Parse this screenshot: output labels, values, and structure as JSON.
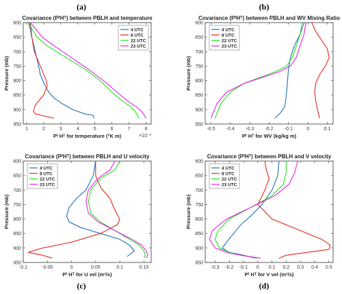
{
  "colors": {
    "4 UTC": "#1f6fb5",
    "8 UTC": "#e3241b",
    "22 UTC": "#22e01c",
    "23 UTC": "#e61ee6"
  },
  "chart_data": [
    {
      "label": "(a)",
      "type": "line",
      "title": "Covariance (PᶠHᵀ) between PBLH and temperature",
      "xlabel": "Pᶠ Hᵀ for temperature (°K m)",
      "xexp": "×10⁻³",
      "ylabel": "Pressure (mb)",
      "xlim": [
        0.8,
        8.3
      ],
      "ylim": [
        600,
        950
      ],
      "xticks": [
        1,
        2,
        3,
        4,
        5,
        6,
        7,
        8
      ],
      "yticks": [
        600,
        650,
        700,
        750,
        800,
        850,
        900,
        950
      ],
      "legend": "top-right",
      "series": [
        {
          "name": "4 UTC",
          "x": [
            1.1,
            1.2,
            1.3,
            1.5,
            1.7,
            1.8,
            1.95,
            2.1,
            2.3,
            2.6,
            3.1,
            3.7,
            4.4,
            4.9,
            4.95
          ],
          "y": [
            600,
            620,
            650,
            700,
            750,
            780,
            800,
            820,
            840,
            860,
            880,
            900,
            915,
            920,
            930
          ]
        },
        {
          "name": "8 UTC",
          "x": [
            1.2,
            1.25,
            1.3,
            1.45,
            1.8,
            2.15,
            2.2,
            2.0,
            1.7,
            1.5,
            1.4,
            1.5,
            2.6
          ],
          "y": [
            600,
            620,
            650,
            700,
            750,
            800,
            820,
            850,
            870,
            885,
            905,
            915,
            930
          ]
        },
        {
          "name": "22 UTC",
          "x": [
            1.1,
            1.3,
            1.6,
            2.2,
            3.3,
            4.4,
            5.3,
            6.0,
            6.6,
            7.1,
            7.4,
            7.6
          ],
          "y": [
            600,
            620,
            650,
            680,
            720,
            760,
            800,
            840,
            870,
            890,
            910,
            930
          ]
        },
        {
          "name": "23 UTC",
          "x": [
            1.2,
            1.5,
            1.9,
            2.6,
            3.6,
            4.6,
            5.5,
            6.3,
            6.9,
            7.4,
            7.8,
            8.0
          ],
          "y": [
            600,
            620,
            650,
            680,
            720,
            760,
            800,
            840,
            870,
            890,
            910,
            930
          ]
        }
      ]
    },
    {
      "label": "(b)",
      "type": "line",
      "title": "Covariance (PᶠHᵀ) between PBLH and WV Mixing Ratio",
      "xlabel": "Pᶠ Hᵀ for WV (kg/kg m)",
      "xexp": "",
      "ylabel": "Pressure (mb)",
      "xlim": [
        -0.53,
        0.13
      ],
      "ylim": [
        600,
        950
      ],
      "xticks": [
        -0.5,
        -0.4,
        -0.3,
        -0.2,
        -0.1,
        0,
        0.1
      ],
      "yticks": [
        600,
        650,
        700,
        750,
        800,
        850,
        900,
        950
      ],
      "legend": "top-left",
      "series": [
        {
          "name": "4 UTC",
          "x": [
            -0.02,
            -0.04,
            -0.07,
            -0.09,
            -0.1,
            -0.105,
            -0.11,
            -0.115,
            -0.12,
            -0.14,
            -0.17
          ],
          "y": [
            600,
            640,
            680,
            720,
            760,
            800,
            840,
            870,
            890,
            910,
            930
          ]
        },
        {
          "name": "8 UTC",
          "x": [
            0.02,
            0.04,
            0.07,
            0.1,
            0.11,
            0.09,
            0.06,
            0.04,
            0.035,
            0.04,
            0.05,
            0.06
          ],
          "y": [
            600,
            630,
            660,
            690,
            720,
            750,
            780,
            810,
            840,
            870,
            900,
            930
          ]
        },
        {
          "name": "22 UTC",
          "x": [
            -0.03,
            -0.04,
            -0.06,
            -0.08,
            -0.11,
            -0.17,
            -0.25,
            -0.33,
            -0.4,
            -0.45,
            -0.48
          ],
          "y": [
            600,
            640,
            680,
            720,
            750,
            770,
            790,
            810,
            840,
            880,
            930
          ]
        },
        {
          "name": "23 UTC",
          "x": [
            -0.01,
            -0.02,
            -0.04,
            -0.06,
            -0.09,
            -0.15,
            -0.24,
            -0.33,
            -0.42,
            -0.47,
            -0.5
          ],
          "y": [
            600,
            640,
            680,
            720,
            750,
            770,
            790,
            810,
            840,
            880,
            930
          ]
        }
      ]
    },
    {
      "label": "(c)",
      "type": "line",
      "title": "Covariance (PᶠHᵀ) between PBLH and U velocity",
      "xlabel": "Pᶠ Hᵀ for U vel (m²/s)",
      "xexp": "",
      "ylabel": "Pressure (mb)",
      "xlim": [
        -0.1,
        0.165
      ],
      "ylim": [
        600,
        950
      ],
      "xticks": [
        -0.1,
        -0.05,
        0,
        0.05,
        0.1,
        0.15
      ],
      "yticks": [
        600,
        650,
        700,
        750,
        800,
        850,
        900,
        950
      ],
      "legend": "top-left",
      "series": [
        {
          "name": "4 UTC",
          "x": [
            0.05,
            0.045,
            0.03,
            0.01,
            -0.005,
            -0.01,
            -0.005,
            0.02,
            0.06,
            0.1,
            0.12,
            0.13,
            0.115
          ],
          "y": [
            600,
            650,
            700,
            730,
            760,
            790,
            810,
            830,
            850,
            870,
            890,
            910,
            930
          ]
        },
        {
          "name": "8 UTC",
          "x": [
            0.05,
            0.05,
            0.06,
            0.08,
            0.09,
            0.1,
            0.095,
            0.06,
            0.0,
            -0.06,
            -0.09,
            -0.06,
            -0.04
          ],
          "y": [
            600,
            650,
            690,
            730,
            770,
            800,
            820,
            850,
            880,
            900,
            915,
            925,
            935
          ]
        },
        {
          "name": "22 UTC",
          "x": [
            0.1,
            0.09,
            0.06,
            0.04,
            0.035,
            0.04,
            0.06,
            0.09,
            0.12,
            0.14,
            0.15,
            0.153,
            0.15
          ],
          "y": [
            600,
            630,
            660,
            700,
            740,
            780,
            810,
            840,
            870,
            890,
            910,
            925,
            935
          ]
        },
        {
          "name": "23 UTC",
          "x": [
            0.09,
            0.08,
            0.055,
            0.035,
            0.03,
            0.035,
            0.055,
            0.09,
            0.125,
            0.145,
            0.155,
            0.158,
            0.155
          ],
          "y": [
            600,
            630,
            660,
            700,
            740,
            780,
            810,
            840,
            870,
            890,
            910,
            925,
            935
          ]
        }
      ]
    },
    {
      "label": "(d)",
      "type": "line",
      "title": "Covariance (PᶠHᵀ) between PBLH and V velocity",
      "xlabel": "Pᶠ Hᵀ for V vel (m²/s)",
      "xexp": "",
      "ylabel": "Pressure (mb)",
      "xlim": [
        -0.37,
        0.53
      ],
      "ylim": [
        600,
        950
      ],
      "xticks": [
        -0.3,
        -0.2,
        -0.1,
        0,
        0.1,
        0.2,
        0.3,
        0.4,
        0.5
      ],
      "yticks": [
        600,
        650,
        700,
        750,
        800,
        850,
        900,
        950
      ],
      "legend": "top-left",
      "series": [
        {
          "name": "4 UTC",
          "x": [
            0.15,
            0.14,
            0.1,
            0.03,
            -0.05,
            -0.12,
            -0.17,
            -0.22,
            -0.25,
            -0.2,
            -0.1,
            -0.02
          ],
          "y": [
            600,
            650,
            700,
            750,
            790,
            820,
            850,
            880,
            900,
            915,
            925,
            935
          ]
        },
        {
          "name": "8 UTC",
          "x": [
            0.05,
            0.06,
            0.08,
            0.05,
            0.0,
            0.1,
            0.3,
            0.45,
            0.51,
            0.5,
            0.35,
            0.2,
            0.15
          ],
          "y": [
            600,
            630,
            660,
            700,
            750,
            800,
            840,
            870,
            890,
            905,
            915,
            925,
            935
          ]
        },
        {
          "name": "22 UTC",
          "x": [
            0.2,
            0.2,
            0.18,
            0.1,
            -0.05,
            -0.2,
            -0.28,
            -0.3,
            -0.27,
            -0.2,
            -0.12,
            0.0
          ],
          "y": [
            600,
            640,
            680,
            720,
            760,
            800,
            840,
            870,
            900,
            915,
            925,
            935
          ]
        },
        {
          "name": "23 UTC",
          "x": [
            0.28,
            0.26,
            0.22,
            0.12,
            -0.05,
            -0.22,
            -0.32,
            -0.34,
            -0.3,
            -0.22,
            -0.12,
            0.02
          ],
          "y": [
            600,
            640,
            680,
            720,
            760,
            800,
            840,
            870,
            900,
            915,
            925,
            935
          ]
        }
      ]
    }
  ]
}
